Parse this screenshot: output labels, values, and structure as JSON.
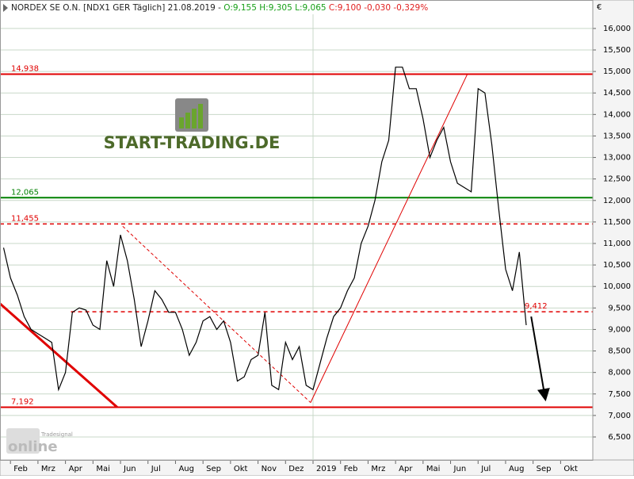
{
  "chart_data": {
    "type": "line",
    "header": {
      "name": "NORDEX SE O.N. [NDX1 GER  Täglich] 21.08.2019 -",
      "open": "O:9,155",
      "high": "H:9,305",
      "low": "L:9,065",
      "close": "C:9,100",
      "change": "-0,030",
      "change_pct": "-0,329%"
    },
    "currency": "€",
    "logo": "START-TRADING.DE",
    "watermark": [
      "Tradesignal",
      "online"
    ],
    "x": [
      0.75,
      1,
      1.25,
      1.5,
      1.75,
      2,
      2.25,
      2.5,
      2.75,
      3,
      3.25,
      3.5,
      3.75,
      4,
      4.25,
      4.5,
      4.75,
      5,
      5.25,
      5.5,
      5.75,
      6,
      6.25,
      6.5,
      6.75,
      7,
      7.25,
      7.5,
      7.75,
      8,
      8.25,
      8.5,
      8.75,
      9,
      9.25,
      9.5,
      9.75,
      10,
      10.25,
      10.5,
      10.75,
      11,
      11.25,
      11.5,
      11.75,
      12,
      12.25,
      12.5,
      12.75,
      13,
      13.25,
      13.5,
      13.75,
      14,
      14.25,
      14.5,
      14.75,
      15,
      15.25,
      15.5,
      15.75,
      16,
      16.25,
      16.5,
      16.75,
      17,
      17.25,
      17.5,
      17.75,
      18,
      18.25,
      18.5,
      18.75,
      19,
      19.25,
      19.5,
      19.75
    ],
    "series": [
      {
        "name": "NORDEX SE O.N.",
        "color": "#000000",
        "values": [
          10900,
          10200,
          9800,
          9300,
          9000,
          8900,
          8800,
          8700,
          7600,
          8000,
          9400,
          9500,
          9450,
          9100,
          9000,
          10600,
          10000,
          11200,
          10600,
          9700,
          8600,
          9200,
          9900,
          9700,
          9400,
          9400,
          9000,
          8400,
          8700,
          9200,
          9300,
          9000,
          9200,
          8700,
          7800,
          7900,
          8300,
          8400,
          9400,
          7700,
          7600,
          8700,
          8300,
          8600,
          7700,
          7600,
          8200,
          8800,
          9300,
          9500,
          9900,
          10200,
          11000,
          11400,
          12000,
          12900,
          13400,
          15100,
          15100,
          14600,
          14600,
          13900,
          13000,
          13400,
          13700,
          12900,
          12400,
          12300,
          12200,
          14600,
          14500,
          13300,
          11800,
          10400,
          9900,
          10800,
          9100
        ]
      }
    ],
    "xlim": [
      0.62,
      22.17
    ],
    "xticks": [
      {
        "value": 1,
        "label": "Feb"
      },
      {
        "value": 2,
        "label": "Mrz"
      },
      {
        "value": 3,
        "label": "Apr"
      },
      {
        "value": 4,
        "label": "Mai"
      },
      {
        "value": 5,
        "label": "Jun"
      },
      {
        "value": 6,
        "label": "Jul"
      },
      {
        "value": 7,
        "label": "Aug"
      },
      {
        "value": 8,
        "label": "Sep"
      },
      {
        "value": 9,
        "label": "Okt"
      },
      {
        "value": 10,
        "label": "Nov"
      },
      {
        "value": 11,
        "label": "Dez"
      },
      {
        "value": 12,
        "label": "2019"
      },
      {
        "value": 13,
        "label": "Feb"
      },
      {
        "value": 14,
        "label": "Mrz"
      },
      {
        "value": 15,
        "label": "Apr"
      },
      {
        "value": 16,
        "label": "Mai"
      },
      {
        "value": 17,
        "label": "Jun"
      },
      {
        "value": 18,
        "label": "Jul"
      },
      {
        "value": 19,
        "label": "Aug"
      },
      {
        "value": 20,
        "label": "Sep"
      },
      {
        "value": 21,
        "label": "Okt"
      }
    ],
    "xgrid": [
      12
    ],
    "ylim": [
      5965,
      16330
    ],
    "yticks": [
      {
        "value": 6500,
        "label": "6,500"
      },
      {
        "value": 7000,
        "label": "7,000"
      },
      {
        "value": 7500,
        "label": "7,500"
      },
      {
        "value": 8000,
        "label": "8,000"
      },
      {
        "value": 8500,
        "label": "8,500"
      },
      {
        "value": 9000,
        "label": "9,000"
      },
      {
        "value": 9500,
        "label": "9,500"
      },
      {
        "value": 10000,
        "label": "10,000"
      },
      {
        "value": 10500,
        "label": "10,500"
      },
      {
        "value": 11000,
        "label": "11,000"
      },
      {
        "value": 11500,
        "label": "11,500"
      },
      {
        "value": 12000,
        "label": "12,000"
      },
      {
        "value": 12500,
        "label": "12,500"
      },
      {
        "value": 13000,
        "label": "13,000"
      },
      {
        "value": 13500,
        "label": "13,500"
      },
      {
        "value": 14000,
        "label": "14,000"
      },
      {
        "value": 14500,
        "label": "14,500"
      },
      {
        "value": 15000,
        "label": "15,000"
      },
      {
        "value": 15500,
        "label": "15,500"
      },
      {
        "value": 16000,
        "label": "16,000"
      }
    ],
    "grid": true,
    "levels": [
      {
        "value": 14938,
        "label": "14,938",
        "color": "#e00000",
        "style": "solid",
        "from": 0.62,
        "label_at": "left"
      },
      {
        "value": 12065,
        "label": "12,065",
        "color": "#008000",
        "style": "solid",
        "from": 0.62,
        "label_at": "left"
      },
      {
        "value": 11455,
        "label": "11,455",
        "color": "#e00000",
        "style": "dashed",
        "from": 0.62,
        "label_at": "left"
      },
      {
        "value": 9412,
        "label": "9,412",
        "color": "#e00000",
        "style": "dashed",
        "from": 3.2,
        "label_at": "right"
      },
      {
        "value": 7192,
        "label": "7,192",
        "color": "#e00000",
        "style": "solid",
        "from": 0.62,
        "label_at": "left"
      }
    ],
    "trendlines": [
      {
        "x": [
          0.62,
          4.88
        ],
        "y": [
          9600,
          7192
        ],
        "color": "#e00000",
        "width": 3,
        "style": "solid"
      },
      {
        "x": [
          5.08,
          11.91
        ],
        "y": [
          11400,
          7300
        ],
        "color": "#e00000",
        "width": 1,
        "style": "dashed"
      },
      {
        "x": [
          11.91,
          17.62
        ],
        "y": [
          7300,
          14950
        ],
        "color": "#e00000",
        "width": 1,
        "style": "solid"
      },
      {
        "x": [
          19.93,
          20.44
        ],
        "y": [
          9300,
          7400
        ],
        "color": "#000000",
        "width": 2,
        "style": "arrow"
      }
    ]
  }
}
